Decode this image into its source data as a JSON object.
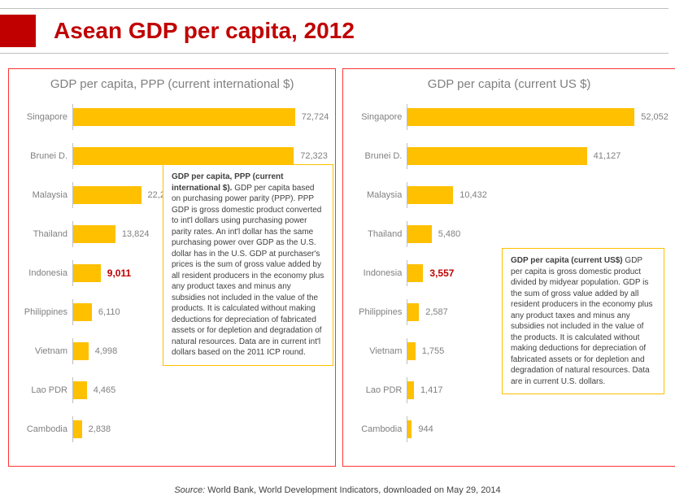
{
  "header": {
    "title": "Asean GDP per capita, 2012",
    "title_color": "#c00000",
    "accent_color": "#c00000"
  },
  "panel_border_color": "#ff3333",
  "bar_color": "#ffc000",
  "text_color": "#808080",
  "highlight_color": "#c00000",
  "left_chart": {
    "title": "GDP per capita, PPP (current international $)",
    "max": 80000,
    "bars": [
      {
        "label": "Singapore",
        "value": 72724,
        "display": "72,724",
        "highlight": false
      },
      {
        "label": "Brunei D.",
        "value": 72323,
        "display": "72,323",
        "highlight": false
      },
      {
        "label": "Malaysia",
        "value": 22280,
        "display": "22,280",
        "highlight": false
      },
      {
        "label": "Thailand",
        "value": 13824,
        "display": "13,824",
        "highlight": false
      },
      {
        "label": "Indonesia",
        "value": 9011,
        "display": "9,011",
        "highlight": true
      },
      {
        "label": "Philippines",
        "value": 6110,
        "display": "6,110",
        "highlight": false
      },
      {
        "label": "Vietnam",
        "value": 4998,
        "display": "4,998",
        "highlight": false
      },
      {
        "label": "Lao PDR",
        "value": 4465,
        "display": "4,465",
        "highlight": false
      },
      {
        "label": "Cambodia",
        "value": 2838,
        "display": "2,838",
        "highlight": false
      }
    ]
  },
  "right_chart": {
    "title": "GDP per capita (current US $)",
    "max": 56000,
    "bars": [
      {
        "label": "Singapore",
        "value": 52052,
        "display": "52,052",
        "highlight": false
      },
      {
        "label": "Brunei D.",
        "value": 41127,
        "display": "41,127",
        "highlight": false
      },
      {
        "label": "Malaysia",
        "value": 10432,
        "display": "10,432",
        "highlight": false
      },
      {
        "label": "Thailand",
        "value": 5480,
        "display": "5,480",
        "highlight": false
      },
      {
        "label": "Indonesia",
        "value": 3557,
        "display": "3,557",
        "highlight": true
      },
      {
        "label": "Philippines",
        "value": 2587,
        "display": "2,587",
        "highlight": false
      },
      {
        "label": "Vietnam",
        "value": 1755,
        "display": "1,755",
        "highlight": false
      },
      {
        "label": "Lao PDR",
        "value": 1417,
        "display": "1,417",
        "highlight": false
      },
      {
        "label": "Cambodia",
        "value": 944,
        "display": "944",
        "highlight": false
      }
    ]
  },
  "callout_left": {
    "title": "GDP per capita, PPP (current international $).",
    "body": " GDP per capita based on purchasing power parity (PPP). PPP GDP is gross domestic product converted to int'l dollars using purchasing power parity rates. An int'l dollar has the same purchasing power over GDP as the U.S. dollar has in the U.S. GDP at purchaser's prices is the sum of gross value added by all resident producers in the economy plus any product taxes and minus any subsidies not included in the value of the products. It is calculated without making deductions for depreciation of fabricated assets or for depletion and degradation of natural resources. Data are in current int'l dollars based on the 2011 ICP round."
  },
  "callout_right": {
    "title": "GDP per capita (current US$)",
    "body": " GDP per capita is gross domestic product divided by midyear population. GDP is the sum of gross value added by all resident producers in the economy plus any product taxes and minus any subsidies not included in the value of the products. It is calculated without making deductions for depreciation of fabricated assets or for depletion and degradation of natural resources. Data are in current U.S. dollars."
  },
  "source": {
    "label": "Source:",
    "text": " World Bank, World Development Indicators, downloaded on May 29, 2014"
  }
}
